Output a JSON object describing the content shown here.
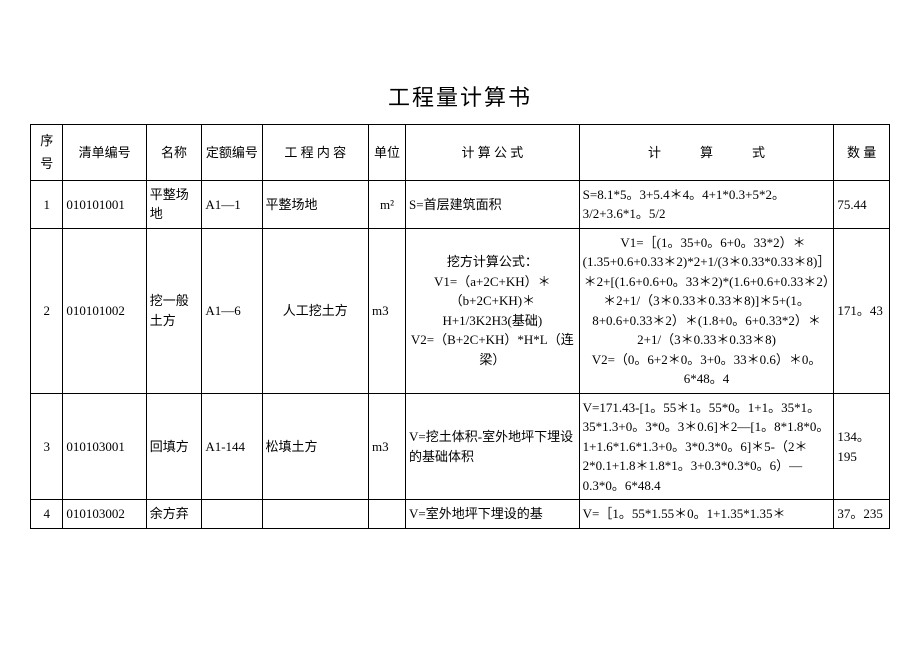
{
  "title": "工程量计算书",
  "headers": {
    "seq": "序号",
    "code": "清单编号",
    "name": "名称",
    "quota": "定额编号",
    "content": "工 程 内 容",
    "unit": "单位",
    "formula": "计 算 公 式",
    "calc": "计　　　算　　　式",
    "qty": "数 量"
  },
  "rows": [
    {
      "seq": "1",
      "code": "010101001",
      "name": "平整场地",
      "quota": "A1—1",
      "content": "平整场地",
      "unit": "m²",
      "formula": "S=首层建筑面积",
      "calc": "S=8.1*5。3+5.4＊4。4+1*0.3+5*2。3/2+3.6*1。5/2",
      "qty": "75.44"
    },
    {
      "seq": "2",
      "code": "010101002",
      "name": "挖一般土方",
      "quota": "A1—6",
      "content": "人工挖土方",
      "unit": "m3",
      "formula": "挖方计算公式：\nV1=（a+2C+KH）＊（b+2C+KH)＊H+1/3K2H3(基础)\nV2=（B+2C+KH）*H*L（连梁）",
      "calc": "　V1=［(1。35+0。6+0。33*2）＊(1.35+0.6+0.33＊2)*2+1/(3＊0.33*0.33＊8)］＊2+[(1.6+0.6+0。33＊2)*(1.6+0.6+0.33＊2）＊2+1/（3＊0.33＊0.33＊8)]＊5+(1。8+0.6+0.33＊2）＊(1.8+0。6+0.33*2）＊2+1/（3＊0.33＊0.33＊8)\nV2=（0。6+2＊0。3+0。33＊0.6）＊0。6*48。4",
      "qty": "171。43"
    },
    {
      "seq": "3",
      "code": "010103001",
      "name": "回填方",
      "quota": "A1-144",
      "content": "松填土方",
      "unit": "m3",
      "formula": "V=挖土体积-室外地坪下埋设的基础体积",
      "calc": "V=171.43-[1。55＊1。55*0。1+1。35*1。35*1.3+0。3*0。3＊0.6]＊2—[1。8*1.8*0。1+1.6*1.6*1.3+0。3*0.3*0。6]＊5-（2＊2*0.1+1.8＊1.8*1。3+0.3*0.3*0。6）—0.3*0。6*48.4",
      "qty": "134。195"
    },
    {
      "seq": "4",
      "code": "010103002",
      "name": "余方弃",
      "quota": "",
      "content": "",
      "unit": "",
      "formula": "V=室外地坪下埋设的基",
      "calc": "V=［1。55*1.55＊0。1+1.35*1.35＊",
      "qty": "37。235"
    }
  ]
}
